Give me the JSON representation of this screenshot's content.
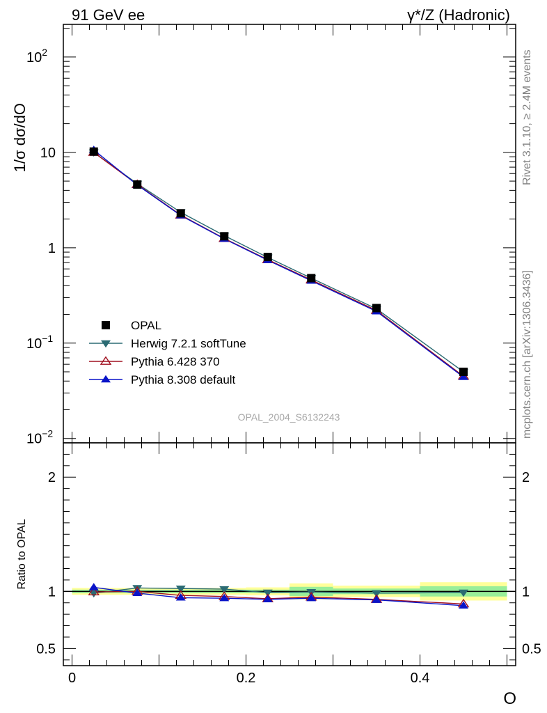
{
  "header": {
    "left_title": "91 GeV ee",
    "right_title_sym": "γ*/Z",
    "right_title_rest": " (Hadronic)"
  },
  "side_text": {
    "rivet": "Rivet 3.1.10, ≥ 2.4M events",
    "mcplots": "mcplots.cern.ch [arXiv:1306.3436]"
  },
  "chart_data": [
    {
      "type": "line",
      "title": "",
      "ylabel": "1/σ dσ/dO",
      "yscale": "log",
      "ylim": [
        0.009,
        220
      ],
      "xlim": [
        -0.01,
        0.51
      ],
      "y_ticks": [
        {
          "value": 0.01,
          "label": "10",
          "sup": "−2"
        },
        {
          "value": 0.1,
          "label": "10",
          "sup": "−1"
        },
        {
          "value": 1,
          "label": "1",
          "sup": ""
        },
        {
          "value": 10,
          "label": "10",
          "sup": ""
        },
        {
          "value": 100,
          "label": "10",
          "sup": "2"
        }
      ],
      "watermark": "OPAL_2004_S6132243",
      "legend_position": "left",
      "x": [
        0.025,
        0.075,
        0.125,
        0.175,
        0.225,
        0.275,
        0.35,
        0.45
      ],
      "series": [
        {
          "name": "OPAL",
          "color": "#000000",
          "marker": "square",
          "line": false,
          "values": [
            10.2,
            4.6,
            2.3,
            1.32,
            0.8,
            0.48,
            0.233,
            0.05
          ]
        },
        {
          "name": "Herwig 7.2.1 softTune",
          "color": "#2b6b73",
          "marker": "triangle-down",
          "line": true,
          "values": [
            10.0,
            4.7,
            2.35,
            1.34,
            0.79,
            0.48,
            0.229,
            0.05
          ]
        },
        {
          "name": "Pythia 6.428 370",
          "color": "#a01020",
          "marker": "triangle-up-open",
          "line": true,
          "values": [
            10.0,
            4.6,
            2.2,
            1.25,
            0.75,
            0.46,
            0.22,
            0.045
          ]
        },
        {
          "name": "Pythia 8.308 default",
          "color": "#0a14c8",
          "marker": "triangle-up",
          "line": true,
          "values": [
            10.6,
            4.55,
            2.18,
            1.24,
            0.74,
            0.45,
            0.215,
            0.044
          ]
        }
      ]
    },
    {
      "type": "line",
      "title": "",
      "xlabel": "O",
      "ylabel": "Ratio to OPAL",
      "ylim": [
        0.35,
        2.3
      ],
      "xlim": [
        -0.01,
        0.51
      ],
      "y_ticks": [
        {
          "value": 0.5,
          "label": "0.5"
        },
        {
          "value": 1,
          "label": "1"
        },
        {
          "value": 2,
          "label": "2"
        }
      ],
      "x_ticks": [
        {
          "value": 0,
          "label": "0"
        },
        {
          "value": 0.2,
          "label": "0.2"
        },
        {
          "value": 0.4,
          "label": "0.4"
        }
      ],
      "reference": 1,
      "bands": [
        {
          "x0": 0.0,
          "x1": 0.05,
          "yellow": [
            0.97,
            1.03
          ],
          "green": [
            0.985,
            1.015
          ]
        },
        {
          "x0": 0.05,
          "x1": 0.1,
          "yellow": [
            0.97,
            1.03
          ],
          "green": [
            0.985,
            1.015
          ]
        },
        {
          "x0": 0.1,
          "x1": 0.15,
          "yellow": [
            0.97,
            1.03
          ],
          "green": [
            0.985,
            1.015
          ]
        },
        {
          "x0": 0.15,
          "x1": 0.2,
          "yellow": [
            0.97,
            1.03
          ],
          "green": [
            0.985,
            1.015
          ]
        },
        {
          "x0": 0.2,
          "x1": 0.25,
          "yellow": [
            0.965,
            1.035
          ],
          "green": [
            0.985,
            1.015
          ]
        },
        {
          "x0": 0.25,
          "x1": 0.3,
          "yellow": [
            0.93,
            1.07
          ],
          "green": [
            0.96,
            1.04
          ]
        },
        {
          "x0": 0.3,
          "x1": 0.4,
          "yellow": [
            0.95,
            1.05
          ],
          "green": [
            0.975,
            1.025
          ]
        },
        {
          "x0": 0.4,
          "x1": 0.5,
          "yellow": [
            0.92,
            1.08
          ],
          "green": [
            0.955,
            1.045
          ]
        }
      ],
      "x": [
        0.025,
        0.075,
        0.125,
        0.175,
        0.225,
        0.275,
        0.35,
        0.45
      ],
      "series": [
        {
          "name": "Herwig 7.2.1 softTune",
          "color": "#2b6b73",
          "marker": "triangle-down",
          "values": [
            0.985,
            1.03,
            1.025,
            1.02,
            0.99,
            0.995,
            0.985,
            0.99
          ]
        },
        {
          "name": "Pythia 6.428 370",
          "color": "#a01020",
          "marker": "triangle-up-open",
          "values": [
            0.995,
            1.0,
            0.965,
            0.955,
            0.935,
            0.95,
            0.93,
            0.89
          ]
        },
        {
          "name": "Pythia 8.308 default",
          "color": "#0a14c8",
          "marker": "triangle-up",
          "values": [
            1.035,
            0.985,
            0.945,
            0.94,
            0.93,
            0.94,
            0.925,
            0.875
          ]
        }
      ]
    }
  ]
}
